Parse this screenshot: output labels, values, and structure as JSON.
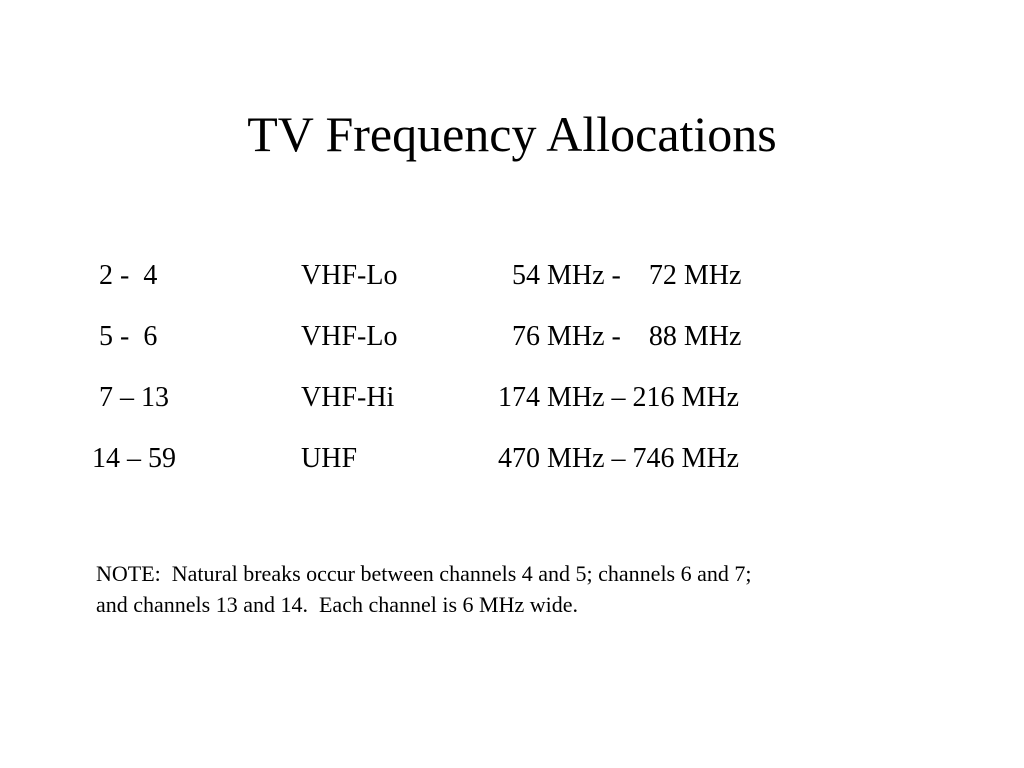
{
  "slide": {
    "title": "TV Frequency Allocations",
    "rows": [
      {
        "channels": " 2 -  4",
        "band": "VHF-Lo",
        "frequency": "  54 MHz -    72 MHz"
      },
      {
        "channels": " 5 -  6",
        "band": "VHF-Lo",
        "frequency": "  76 MHz -    88 MHz"
      },
      {
        "channels": " 7 – 13",
        "band": "VHF-Hi",
        "frequency": "174 MHz – 216 MHz"
      },
      {
        "channels": "14 – 59",
        "band": "UHF",
        "frequency": "470 MHz – 746 MHz"
      }
    ],
    "note": {
      "line1": "NOTE:  Natural breaks occur between channels 4 and 5; channels 6 and 7;",
      "line2": "and channels 13 and 14.  Each channel is 6 MHz wide."
    }
  }
}
